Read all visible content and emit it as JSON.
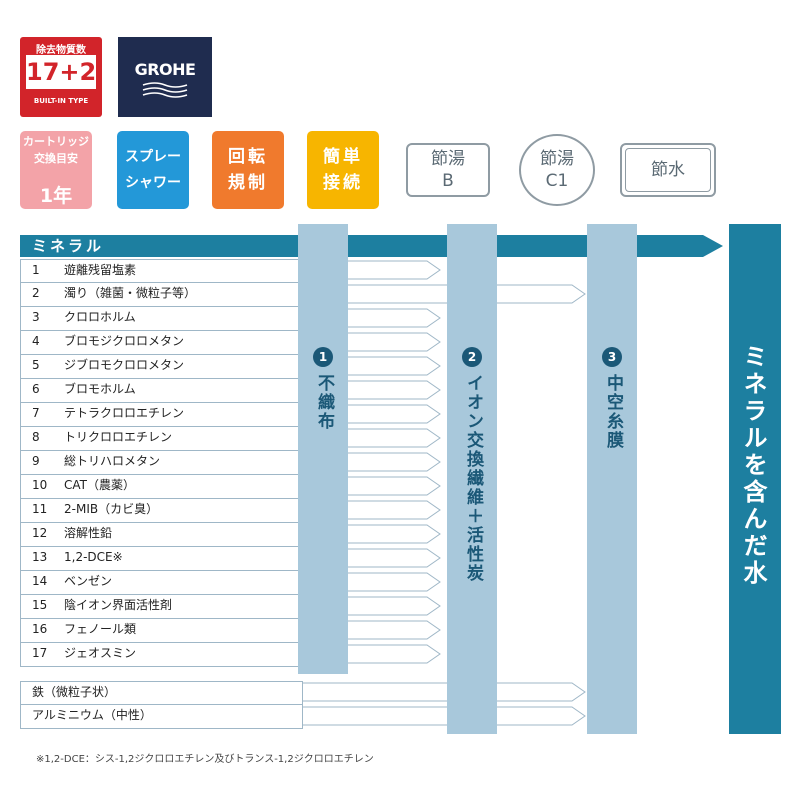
{
  "badge": {
    "label": "除去物質数",
    "value": "17+2",
    "sub": "BUILT-IN TYPE",
    "color": "#d2242a"
  },
  "brand": {
    "name": "GROHE",
    "color": "#1f2c4f"
  },
  "features": {
    "cartridge": {
      "line1": "カートリッジ\n交換目安",
      "line2": "1年",
      "color": "#f3a3a8"
    },
    "spray": {
      "label": "スプレー\nシャワー",
      "color": "#2398d8"
    },
    "regulation": {
      "label": "回転\n規制",
      "color": "#f07a2d"
    },
    "connect": {
      "label": "簡単\n接続",
      "color": "#f7b500"
    }
  },
  "savings": {
    "b": "節湯\nB",
    "c1": "節湯\nC1",
    "water": "節水"
  },
  "mineral": {
    "label": "ミネラル",
    "color": "#1d7fa0"
  },
  "substances": [
    {
      "num": "1",
      "name": "遊離残留塩素",
      "removed_by": 1
    },
    {
      "num": "2",
      "name": "濁り（雑菌・微粒子等）",
      "removed_by": 2
    },
    {
      "num": "3",
      "name": "クロロホルム",
      "removed_by": 1
    },
    {
      "num": "4",
      "name": "ブロモジクロロメタン",
      "removed_by": 1
    },
    {
      "num": "5",
      "name": "ジブロモクロロメタン",
      "removed_by": 1
    },
    {
      "num": "6",
      "name": "ブロモホルム",
      "removed_by": 1
    },
    {
      "num": "7",
      "name": "テトラクロロエチレン",
      "removed_by": 1
    },
    {
      "num": "8",
      "name": "トリクロロエチレン",
      "removed_by": 1
    },
    {
      "num": "9",
      "name": "総トリハロメタン",
      "removed_by": 1
    },
    {
      "num": "10",
      "name": "CAT（農薬）",
      "removed_by": 1
    },
    {
      "num": "11",
      "name": "2-MIB（カビ臭）",
      "removed_by": 1
    },
    {
      "num": "12",
      "name": "溶解性鉛",
      "removed_by": 1
    },
    {
      "num": "13",
      "name": "1,2-DCE※",
      "removed_by": 1
    },
    {
      "num": "14",
      "name": "ベンゼン",
      "removed_by": 1
    },
    {
      "num": "15",
      "name": "陰イオン界面活性剤",
      "removed_by": 1
    },
    {
      "num": "16",
      "name": "フェノール類",
      "removed_by": 1
    },
    {
      "num": "17",
      "name": "ジェオスミン",
      "removed_by": 1
    }
  ],
  "extras": [
    {
      "name": "鉄（微粒子状）",
      "removed_by": 2
    },
    {
      "name": "アルミニウム（中性）",
      "removed_by": 2
    }
  ],
  "filters": [
    {
      "num": "1",
      "name": "不織布"
    },
    {
      "num": "2",
      "name": "イオン交換繊維＋活性炭"
    },
    {
      "num": "3",
      "name": "中空糸膜"
    }
  ],
  "result": "ミネラルを含んだ水",
  "footnote": "※1,2-DCE：シス-1,2ジクロロエチレン及びトランス-1,2ジクロロエチレン"
}
